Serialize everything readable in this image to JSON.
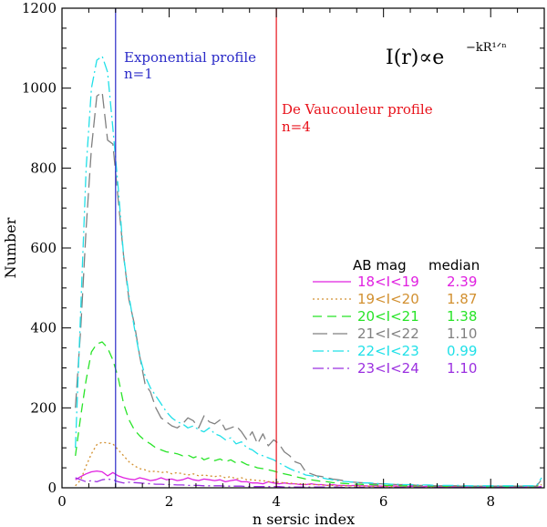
{
  "chart_data": {
    "type": "line",
    "title": "",
    "xlabel": "n sersic index",
    "ylabel": "Number",
    "xlim": [
      0,
      9
    ],
    "ylim": [
      0,
      1200
    ],
    "x_ticks": [
      0,
      2,
      4,
      6,
      8
    ],
    "y_ticks": [
      0,
      200,
      400,
      600,
      800,
      1000,
      1200
    ],
    "x_minor_step": 0.5,
    "y_minor_step": 50,
    "formula": {
      "base": "I(r)∝e",
      "exponent": "−kR¹ᐟⁿ"
    },
    "reference_lines": [
      {
        "x": 1,
        "color": "#2b2bc8",
        "label_line1": "Exponential profile",
        "label_line2": "n=1"
      },
      {
        "x": 4,
        "color": "#e8121b",
        "label_line1": "De Vaucouleur profile",
        "label_line2": "n=4"
      }
    ],
    "legend": {
      "header_mag": "AB mag",
      "header_median": "median",
      "location": "center-right"
    },
    "x": [
      0.25,
      0.35,
      0.45,
      0.55,
      0.65,
      0.75,
      0.85,
      0.95,
      1.05,
      1.15,
      1.25,
      1.35,
      1.45,
      1.55,
      1.65,
      1.75,
      1.85,
      1.95,
      2.05,
      2.15,
      2.25,
      2.35,
      2.45,
      2.55,
      2.65,
      2.75,
      2.85,
      2.95,
      3.05,
      3.15,
      3.25,
      3.35,
      3.45,
      3.55,
      3.65,
      3.75,
      3.85,
      3.95,
      4.05,
      4.15,
      4.25,
      4.35,
      4.45,
      4.55,
      4.65,
      4.75,
      4.85,
      4.95,
      5.05,
      5.15,
      5.25,
      5.35,
      5.45,
      5.55,
      5.65,
      5.75,
      5.85,
      5.95,
      6.05,
      6.15,
      6.25,
      6.35,
      6.45,
      6.55,
      6.65,
      6.75,
      6.85,
      6.95,
      7.05,
      7.15,
      7.25,
      7.35,
      7.45,
      7.55,
      7.65,
      7.75,
      7.85,
      7.95,
      8.05,
      8.15,
      8.25,
      8.35,
      8.45,
      8.55,
      8.65,
      8.75,
      8.85,
      8.95
    ],
    "series": [
      {
        "name": "18<I<19",
        "median": "2.39",
        "color": "#e020e0",
        "dash": "",
        "values": [
          20,
          28,
          35,
          40,
          42,
          40,
          30,
          38,
          30,
          25,
          22,
          20,
          25,
          22,
          18,
          20,
          25,
          20,
          22,
          18,
          20,
          25,
          20,
          18,
          22,
          20,
          18,
          20,
          15,
          18,
          20,
          15,
          15,
          12,
          12,
          10,
          15,
          12,
          10,
          12,
          10,
          10,
          8,
          8,
          10,
          8,
          8,
          6,
          8,
          6,
          6,
          5,
          6,
          5,
          5,
          4,
          5,
          4,
          4,
          5,
          4,
          4,
          3,
          4,
          3,
          3,
          4,
          3,
          3,
          2,
          3,
          2,
          3,
          2,
          2,
          3,
          2,
          2,
          2,
          2,
          2,
          2,
          2,
          2,
          2,
          2,
          2,
          3
        ]
      },
      {
        "name": "19<I<20",
        "median": "1.87",
        "color": "#d29030",
        "dash": "2,3",
        "values": [
          5,
          20,
          55,
          85,
          108,
          114,
          112,
          110,
          95,
          80,
          65,
          55,
          48,
          45,
          40,
          42,
          38,
          40,
          35,
          38,
          35,
          32,
          35,
          30,
          32,
          30,
          28,
          30,
          25,
          28,
          22,
          25,
          20,
          20,
          18,
          18,
          15,
          15,
          14,
          12,
          12,
          10,
          10,
          9,
          8,
          8,
          7,
          6,
          6,
          5,
          5,
          5,
          4,
          4,
          4,
          4,
          3,
          3,
          3,
          3,
          3,
          3,
          2,
          2,
          2,
          2,
          2,
          2,
          2,
          2,
          2,
          2,
          2,
          2,
          2,
          2,
          2,
          2,
          2,
          2,
          2,
          2,
          2,
          2,
          2,
          2,
          2,
          8
        ]
      },
      {
        "name": "20<I<21",
        "median": "1.38",
        "color": "#28e428",
        "dash": "10,6",
        "values": [
          80,
          180,
          270,
          340,
          360,
          365,
          350,
          320,
          275,
          210,
          170,
          145,
          130,
          118,
          110,
          100,
          95,
          90,
          88,
          85,
          80,
          82,
          75,
          80,
          70,
          75,
          68,
          72,
          65,
          70,
          62,
          65,
          58,
          55,
          50,
          48,
          45,
          42,
          38,
          35,
          32,
          28,
          25,
          22,
          20,
          18,
          16,
          15,
          13,
          12,
          11,
          10,
          9,
          9,
          8,
          8,
          7,
          7,
          6,
          6,
          6,
          5,
          5,
          5,
          5,
          5,
          4,
          4,
          4,
          4,
          4,
          4,
          4,
          4,
          3,
          3,
          3,
          3,
          3,
          3,
          3,
          3,
          3,
          3,
          3,
          3,
          3,
          15
        ]
      },
      {
        "name": "21<I<22",
        "median": "1.10",
        "color": "#808080",
        "dash": "16,6",
        "values": [
          200,
          400,
          650,
          850,
          980,
          990,
          870,
          860,
          720,
          580,
          470,
          410,
          330,
          260,
          240,
          200,
          175,
          165,
          155,
          150,
          160,
          175,
          168,
          150,
          180,
          165,
          160,
          170,
          145,
          150,
          155,
          140,
          120,
          140,
          110,
          135,
          105,
          120,
          110,
          90,
          80,
          65,
          60,
          40,
          35,
          30,
          28,
          25,
          22,
          20,
          18,
          15,
          14,
          13,
          12,
          11,
          10,
          10,
          9,
          9,
          8,
          8,
          7,
          7,
          6,
          6,
          6,
          5,
          5,
          5,
          5,
          5,
          4,
          4,
          4,
          4,
          4,
          4,
          4,
          4,
          4,
          4,
          4,
          4,
          4,
          4,
          4,
          20
        ]
      },
      {
        "name": "22<I<23",
        "median": "0.99",
        "color": "#20e0e8",
        "dash": "12,4,2,4",
        "values": [
          100,
          450,
          800,
          1000,
          1070,
          1080,
          1040,
          900,
          750,
          580,
          480,
          400,
          330,
          280,
          250,
          230,
          210,
          190,
          175,
          165,
          160,
          150,
          155,
          145,
          140,
          150,
          135,
          130,
          120,
          125,
          110,
          115,
          100,
          95,
          85,
          80,
          75,
          70,
          62,
          55,
          48,
          42,
          38,
          32,
          30,
          28,
          25,
          22,
          20,
          18,
          16,
          15,
          14,
          13,
          12,
          12,
          11,
          10,
          10,
          9,
          9,
          8,
          8,
          8,
          7,
          7,
          7,
          6,
          6,
          6,
          6,
          6,
          6,
          5,
          5,
          5,
          5,
          5,
          5,
          5,
          5,
          5,
          5,
          5,
          5,
          5,
          5,
          25
        ]
      },
      {
        "name": "23<I<24",
        "median": "1.10",
        "color": "#9b30e0",
        "dash": "12,4,2,4",
        "values": [
          25,
          20,
          15,
          18,
          15,
          20,
          22,
          20,
          15,
          12,
          14,
          13,
          12,
          11,
          10,
          9,
          9,
          8,
          8,
          7,
          7,
          6,
          6,
          6,
          5,
          5,
          5,
          5,
          4,
          4,
          4,
          4,
          3,
          3,
          3,
          3,
          3,
          3,
          3,
          2,
          2,
          2,
          2,
          2,
          2,
          2,
          2,
          2,
          2,
          2,
          1,
          1,
          1,
          1,
          1,
          1,
          1,
          1,
          1,
          1,
          1,
          1,
          1,
          1,
          1,
          1,
          1,
          1,
          1,
          1,
          1,
          1,
          1,
          1,
          1,
          1,
          1,
          1,
          1,
          1,
          1,
          1,
          1,
          1,
          1,
          1,
          1,
          2
        ]
      }
    ]
  }
}
